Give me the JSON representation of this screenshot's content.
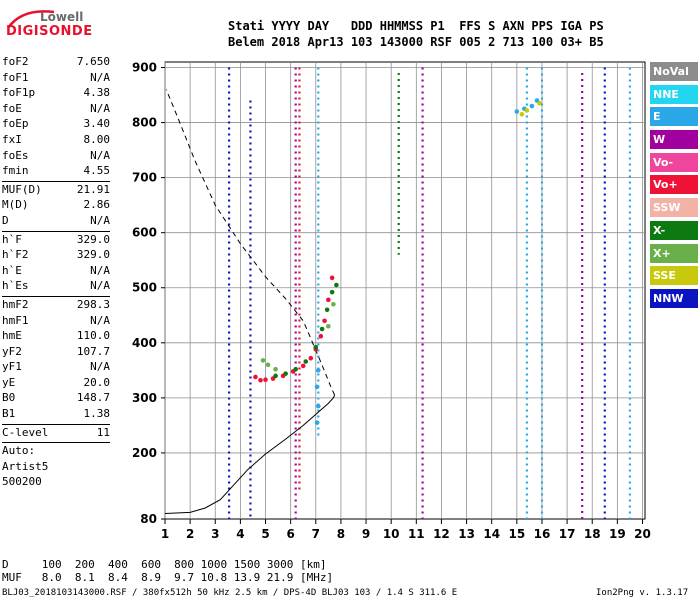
{
  "logo": {
    "line1": "Lowell",
    "line2": "DIGISONDE"
  },
  "header": {
    "row1": "Stati YYYY DAY   DDD HHMMSS P1  FFS S AXN PPS IGA PS",
    "row2": "Belem 2018 Apr13 103 143000 RSF 005 2 713 100 03+ B5"
  },
  "side_groups": [
    [
      [
        "foF2",
        "7.650"
      ],
      [
        "foF1",
        "N/A"
      ],
      [
        "foF1p",
        "4.38"
      ],
      [
        "foE",
        "N/A"
      ],
      [
        "foEp",
        "3.40"
      ],
      [
        "fxI",
        "8.00"
      ],
      [
        "foEs",
        "N/A"
      ],
      [
        "fmin",
        "4.55"
      ]
    ],
    [
      [
        "MUF(D)",
        "21.91"
      ],
      [
        "M(D)",
        "2.86"
      ],
      [
        "D",
        "N/A"
      ]
    ],
    [
      [
        "h`F",
        "329.0"
      ],
      [
        "h`F2",
        "329.0"
      ],
      [
        "h`E",
        "N/A"
      ],
      [
        "h`Es",
        "N/A"
      ]
    ],
    [
      [
        "hmF2",
        "298.3"
      ],
      [
        "hmF1",
        "N/A"
      ],
      [
        "hmE",
        "110.0"
      ],
      [
        "yF2",
        "107.7"
      ],
      [
        "yF1",
        "N/A"
      ],
      [
        "yE",
        "20.0"
      ],
      [
        "B0",
        "148.7"
      ],
      [
        "B1",
        "1.38"
      ]
    ],
    [
      [
        "C-level",
        "11"
      ]
    ]
  ],
  "auto": [
    "Auto:",
    "Artist5",
    "500200"
  ],
  "legend": [
    {
      "label": "NoVal",
      "color": "#8c8c8c"
    },
    {
      "label": "NNE",
      "color": "#22d6f0"
    },
    {
      "label": "E",
      "color": "#2aa7e6"
    },
    {
      "label": "W",
      "color": "#a0009e"
    },
    {
      "label": "Vo-",
      "color": "#f0459c"
    },
    {
      "label": "Vo+",
      "color": "#ee1237"
    },
    {
      "label": "SSW",
      "color": "#f2b3a6"
    },
    {
      "label": "X-",
      "color": "#0c7a10"
    },
    {
      "label": "X+",
      "color": "#69b04a"
    },
    {
      "label": "SSE",
      "color": "#c8c80c"
    },
    {
      "label": "NNW",
      "color": "#0a14c0"
    }
  ],
  "footer": {
    "d_row": "D     100  200  400  600  800 1000 1500 3000 [km]",
    "muf_row": "MUF   8.0  8.1  8.4  8.9  9.7 10.8 13.9 21.9 [MHz]",
    "info": "BLJ03_2018103143000.RSF / 380fx512h 50 kHz 2.5 km / DPS-4D BLJ03 103 / 1.4 S 311.6 E",
    "version": "Ion2Png v. 1.3.17"
  },
  "chart_data": {
    "type": "scatter",
    "x_ticks": [
      1,
      2,
      3,
      4,
      5,
      6,
      7,
      8,
      9,
      10,
      11,
      12,
      13,
      14,
      15,
      16,
      17,
      18,
      19,
      20
    ],
    "y_ticks": [
      80,
      200,
      300,
      400,
      500,
      600,
      700,
      800,
      900
    ],
    "xlim": [
      1,
      20.1
    ],
    "ylim": [
      80,
      910
    ],
    "grid": true,
    "series": [
      {
        "color": "#ee1237",
        "points": [
          [
            4.6,
            338
          ],
          [
            4.8,
            332
          ],
          [
            5.0,
            333
          ],
          [
            5.3,
            335
          ],
          [
            5.7,
            340
          ],
          [
            6.1,
            348
          ],
          [
            6.5,
            358
          ],
          [
            6.8,
            372
          ],
          [
            7.0,
            388
          ],
          [
            7.2,
            412
          ],
          [
            7.35,
            440
          ],
          [
            7.5,
            478
          ],
          [
            7.65,
            518
          ]
        ]
      },
      {
        "color": "#0c7a10",
        "points": [
          [
            5.4,
            340
          ],
          [
            5.8,
            344
          ],
          [
            6.2,
            352
          ],
          [
            6.6,
            366
          ],
          [
            7.0,
            392
          ],
          [
            7.25,
            425
          ],
          [
            7.45,
            460
          ],
          [
            7.65,
            492
          ],
          [
            7.82,
            505
          ]
        ]
      },
      {
        "color": "#69b04a",
        "points": [
          [
            4.9,
            368
          ],
          [
            5.1,
            360
          ],
          [
            5.4,
            352
          ],
          [
            7.5,
            430
          ],
          [
            7.7,
            470
          ]
        ]
      },
      {
        "color": "#2aa7e6",
        "points": [
          [
            7.05,
            255
          ],
          [
            7.1,
            285
          ],
          [
            7.05,
            320
          ],
          [
            7.1,
            350
          ],
          [
            15.0,
            820
          ],
          [
            15.3,
            825
          ],
          [
            15.6,
            830
          ],
          [
            15.8,
            840
          ]
        ]
      },
      {
        "color": "#c8c80c",
        "points": [
          [
            15.2,
            815
          ],
          [
            15.4,
            822
          ],
          [
            15.9,
            835
          ]
        ]
      }
    ],
    "vertical_lines": [
      {
        "x": 3.55,
        "y0": 80,
        "y1": 900,
        "color": "#0a14c0"
      },
      {
        "x": 4.4,
        "y0": 80,
        "y1": 840,
        "color": "#0a14c0"
      },
      {
        "x": 6.2,
        "y0": 80,
        "y1": 900,
        "color": "#a0009e"
      },
      {
        "x": 6.35,
        "y0": 130,
        "y1": 900,
        "color": "#ee1237"
      },
      {
        "x": 7.1,
        "y0": 230,
        "y1": 900,
        "color": "#2aa7e6"
      },
      {
        "x": 10.3,
        "y0": 560,
        "y1": 890,
        "color": "#0c7a10"
      },
      {
        "x": 11.25,
        "y0": 80,
        "y1": 900,
        "color": "#a0009e"
      },
      {
        "x": 15.4,
        "y0": 80,
        "y1": 900,
        "color": "#2aa7e6"
      },
      {
        "x": 16.0,
        "y0": 80,
        "y1": 900,
        "color": "#2aa7e6"
      },
      {
        "x": 17.6,
        "y0": 80,
        "y1": 890,
        "color": "#a0009e"
      },
      {
        "x": 18.5,
        "y0": 80,
        "y1": 900,
        "color": "#0a14c0"
      },
      {
        "x": 19.5,
        "y0": 80,
        "y1": 900,
        "color": "#2aa7e6"
      }
    ],
    "profile_line": [
      [
        1.0,
        90
      ],
      [
        2.0,
        92
      ],
      [
        2.6,
        100
      ],
      [
        3.2,
        115
      ],
      [
        3.7,
        140
      ],
      [
        4.3,
        170
      ],
      [
        5.0,
        198
      ],
      [
        5.8,
        225
      ],
      [
        6.5,
        250
      ],
      [
        7.0,
        270
      ],
      [
        7.5,
        290
      ],
      [
        7.7,
        300
      ],
      [
        7.75,
        305
      ],
      [
        7.6,
        320
      ],
      [
        7.2,
        365
      ],
      [
        6.5,
        440
      ],
      [
        5.8,
        480
      ],
      [
        5.0,
        520
      ],
      [
        4.0,
        580
      ],
      [
        3.0,
        650
      ],
      [
        2.2,
        730
      ],
      [
        1.5,
        810
      ],
      [
        1.05,
        860
      ]
    ]
  }
}
